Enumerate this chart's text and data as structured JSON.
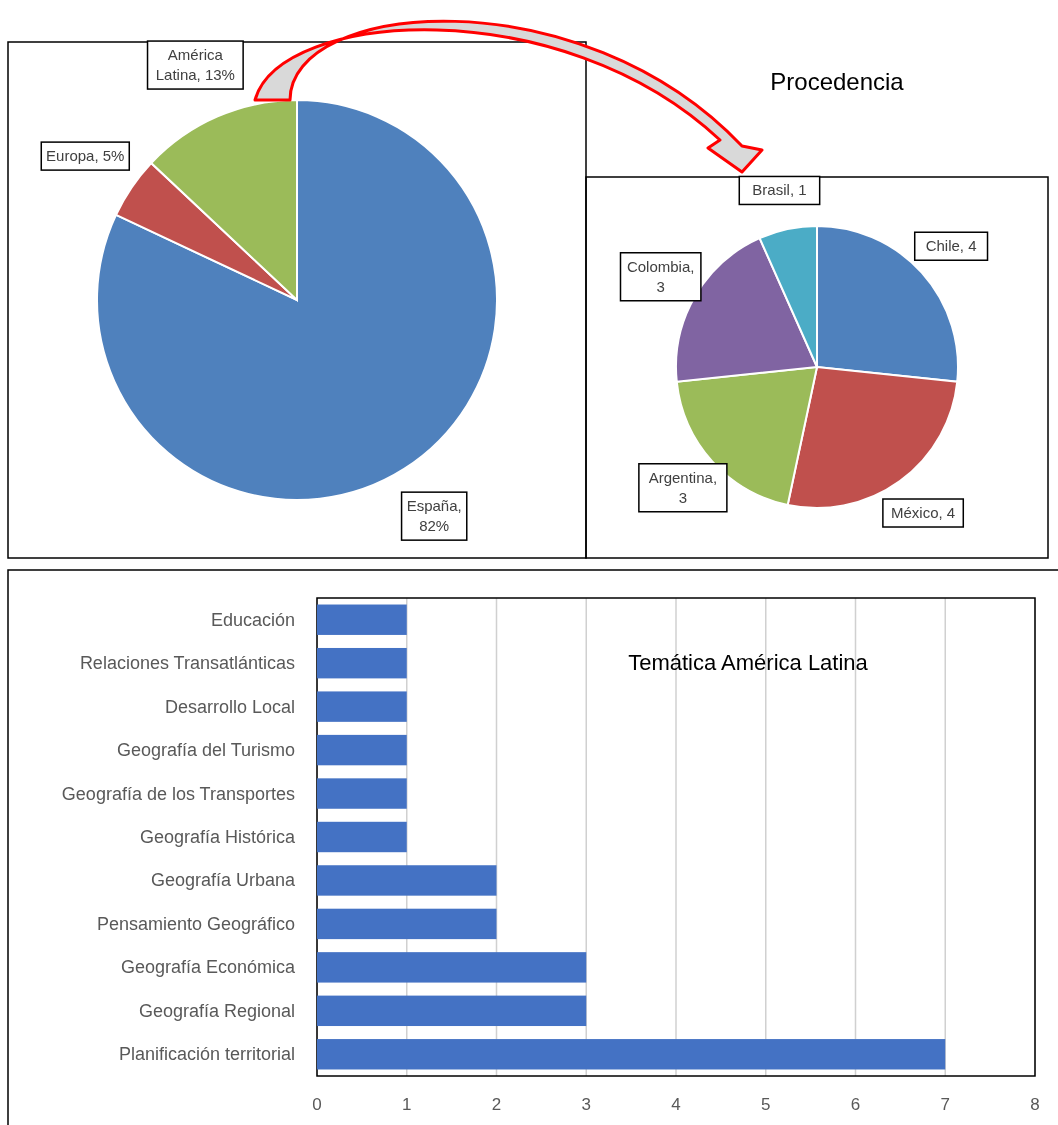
{
  "chart_data": [
    {
      "type": "pie",
      "categories": [
        "España",
        "Europa",
        "América Latina"
      ],
      "values": [
        82,
        5,
        13
      ],
      "colors": [
        "#4f81bd",
        "#c0504d",
        "#9bbb59"
      ],
      "value_labels": [
        ", 82%",
        ", 5%",
        ", 13%"
      ]
    },
    {
      "type": "pie",
      "title": "Procedencia",
      "categories": [
        "Chile",
        "México",
        "Argentina",
        "Colombia",
        "Brasil"
      ],
      "values": [
        4,
        4,
        3,
        3,
        1
      ],
      "colors": [
        "#4f81bd",
        "#c0504d",
        "#9bbb59",
        "#8064a2",
        "#4bacc6"
      ],
      "value_labels": [
        ", 4",
        ", 4",
        ", 3",
        ", 3",
        ", 1"
      ]
    },
    {
      "type": "bar",
      "orientation": "horizontal",
      "title": "Temática América Latina",
      "categories": [
        "Educación",
        "Relaciones Transatlánticas",
        "Desarrollo Local",
        "Geografía del Turismo",
        "Geografía de los Transportes",
        "Geografía Histórica",
        "Geografía Urbana",
        "Pensamiento Geográfico",
        "Geografía Económica",
        "Geografía Regional",
        "Planificación territorial"
      ],
      "values": [
        1,
        1,
        1,
        1,
        1,
        1,
        2,
        2,
        3,
        3,
        7
      ],
      "color": "#4472c4",
      "xlim": [
        0,
        8
      ],
      "xticks": [
        0,
        1,
        2,
        3,
        4,
        5,
        6,
        7,
        8
      ],
      "grid": "x"
    }
  ]
}
